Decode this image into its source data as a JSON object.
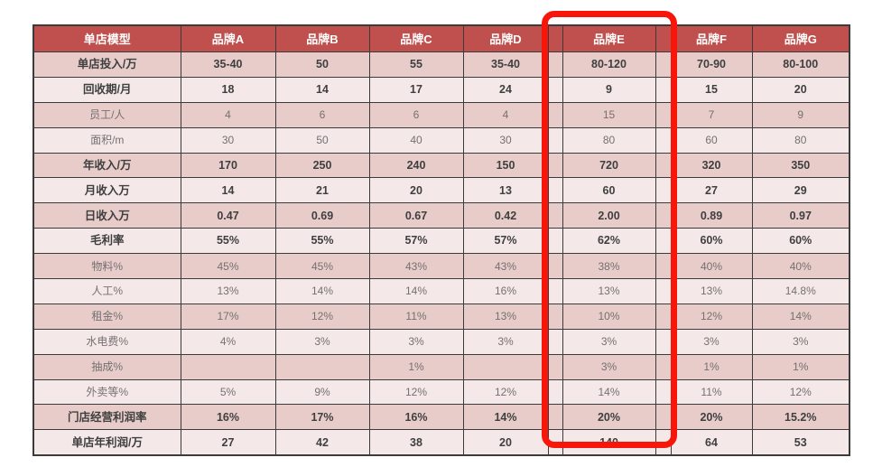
{
  "chart_data": {
    "type": "table",
    "title": "",
    "columns": [
      "单店模型",
      "品牌A",
      "品牌B",
      "品牌C",
      "品牌D",
      "品牌E",
      "品牌F",
      "品牌G"
    ],
    "highlighted_column": "品牌E",
    "rows": [
      {
        "label": "单店投入/万",
        "bold": true,
        "values": [
          "35-40",
          "50",
          "55",
          "35-40",
          "80-120",
          "70-90",
          "80-100"
        ]
      },
      {
        "label": "回收期/月",
        "bold": true,
        "values": [
          "18",
          "14",
          "17",
          "24",
          "9",
          "15",
          "20"
        ]
      },
      {
        "label": "员工/人",
        "bold": false,
        "values": [
          "4",
          "6",
          "6",
          "4",
          "15",
          "7",
          "9"
        ]
      },
      {
        "label": "面积/m",
        "bold": false,
        "values": [
          "30",
          "50",
          "40",
          "30",
          "80",
          "60",
          "80"
        ]
      },
      {
        "label": "年收入/万",
        "bold": true,
        "values": [
          "170",
          "250",
          "240",
          "150",
          "720",
          "320",
          "350"
        ]
      },
      {
        "label": "月收入万",
        "bold": true,
        "values": [
          "14",
          "21",
          "20",
          "13",
          "60",
          "27",
          "29"
        ]
      },
      {
        "label": "日收入万",
        "bold": true,
        "values": [
          "0.47",
          "0.69",
          "0.67",
          "0.42",
          "2.00",
          "0.89",
          "0.97"
        ]
      },
      {
        "label": "毛利率",
        "bold": true,
        "values": [
          "55%",
          "55%",
          "57%",
          "57%",
          "62%",
          "60%",
          "60%"
        ]
      },
      {
        "label": "物料%",
        "bold": false,
        "values": [
          "45%",
          "45%",
          "43%",
          "43%",
          "38%",
          "40%",
          "40%"
        ]
      },
      {
        "label": "人工%",
        "bold": false,
        "values": [
          "13%",
          "14%",
          "14%",
          "16%",
          "13%",
          "13%",
          "14.8%"
        ]
      },
      {
        "label": "租金%",
        "bold": false,
        "values": [
          "17%",
          "12%",
          "11%",
          "13%",
          "10%",
          "12%",
          "14%"
        ]
      },
      {
        "label": "水电费%",
        "bold": false,
        "values": [
          "4%",
          "3%",
          "3%",
          "3%",
          "3%",
          "3%",
          "3%"
        ]
      },
      {
        "label": "抽成%",
        "bold": false,
        "values": [
          "",
          "",
          "1%",
          "",
          "3%",
          "1%",
          "1%"
        ]
      },
      {
        "label": "外卖等%",
        "bold": false,
        "values": [
          "5%",
          "9%",
          "12%",
          "12%",
          "14%",
          "11%",
          "12%"
        ]
      },
      {
        "label": "门店经营利润率",
        "bold": true,
        "values": [
          "16%",
          "17%",
          "16%",
          "14%",
          "20%",
          "20%",
          "15.2%"
        ]
      },
      {
        "label": "单店年利润/万",
        "bold": true,
        "values": [
          "27",
          "42",
          "38",
          "20",
          "140",
          "64",
          "53"
        ]
      }
    ]
  },
  "colors": {
    "header_bg": "#C0504D",
    "header_text": "#FFFFFF",
    "row_pink": "#E7CCCA",
    "row_light": "#F4E9E8",
    "border": "#3B3B3B",
    "bold_text": "#3F3F3F",
    "regular_text": "#757070",
    "highlight_red": "#F8150A"
  }
}
